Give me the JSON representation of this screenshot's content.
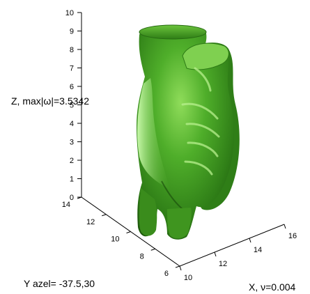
{
  "chart_data": {
    "type": "isosurface-3d",
    "labels": {
      "z": "Z, max|ω|=3.5342",
      "y": "Y  azel= -37.5,30",
      "x": "X, ν=0.004"
    },
    "z_axis": {
      "ticks": [
        0,
        1,
        2,
        3,
        4,
        5,
        6,
        7,
        8,
        9,
        10
      ],
      "lim": [
        0,
        10
      ]
    },
    "y_axis": {
      "ticks": [
        6,
        8,
        10,
        12,
        14
      ],
      "lim": [
        6,
        14
      ]
    },
    "x_axis": {
      "ticks": [
        10,
        12,
        14,
        16
      ],
      "lim": [
        10,
        16
      ]
    },
    "view": {
      "azimuth": -37.5,
      "elevation": 30
    },
    "surface_color": "#3f9a1f",
    "grid": false
  }
}
